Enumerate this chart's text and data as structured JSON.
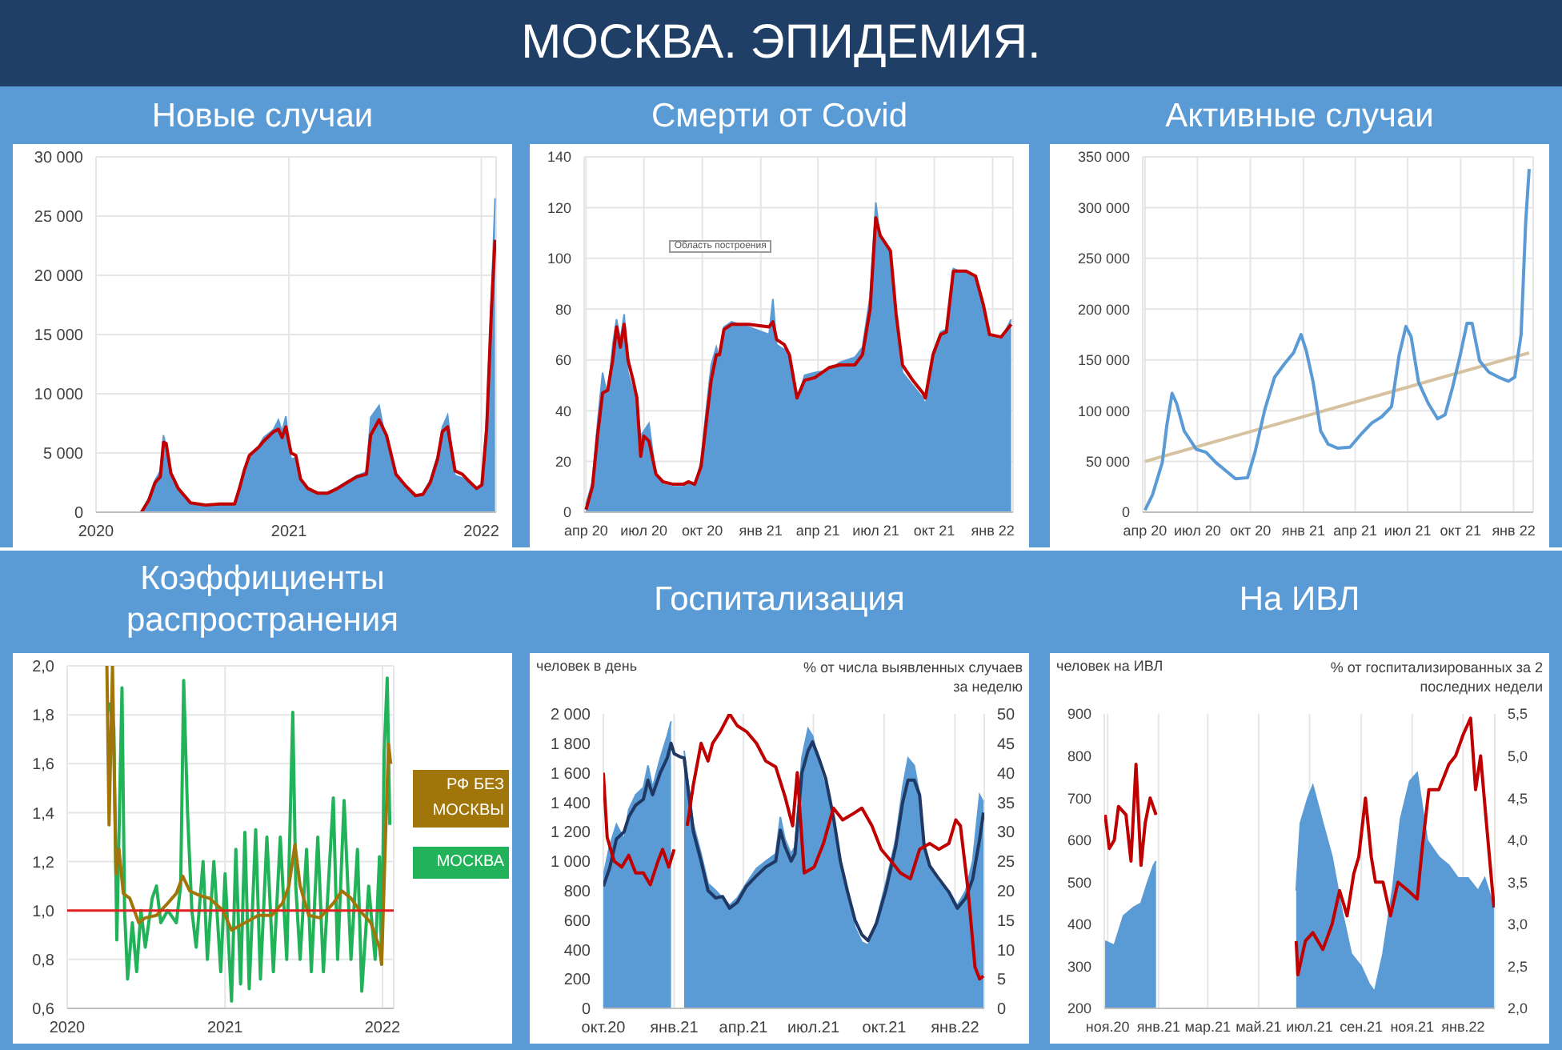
{
  "chart_data": [
    {
      "type": "line",
      "title": "Новые случаи",
      "annotations": [
        "МОСКВА. ЭПИДЕМИЯ."
      ],
      "xlim": [
        "2020-01-01",
        "2022-01-29"
      ],
      "xticks": [
        "2020",
        "2021",
        "2022"
      ],
      "ylim": [
        0,
        30000
      ],
      "yticks": [
        0,
        {
          "value": 5000,
          "label": "5 000"
        },
        {
          "value": 10000,
          "label": "10 000"
        },
        {
          "value": 15000,
          "label": "15 000"
        },
        {
          "value": 20000,
          "label": "20 000"
        },
        {
          "value": 25000,
          "label": "25 000"
        },
        {
          "value": 30000,
          "label": "30 000"
        }
      ],
      "grid": true,
      "series": [
        {
          "type": "area",
          "color": "#5b9bd5",
          "x": [
            "2020-03-27",
            "2020-04-10",
            "2020-04-22",
            "2020-05-02",
            "2020-05-08",
            "2020-05-13",
            "2020-05-22",
            "2020-06-05",
            "2020-06-28",
            "2020-07-26",
            "2020-08-23",
            "2020-09-20",
            "2020-09-29",
            "2020-10-08",
            "2020-10-18",
            "2020-11-05",
            "2020-11-14",
            "2020-12-03",
            "2020-12-12",
            "2020-12-19",
            "2020-12-26",
            "2021-01-05",
            "2021-01-14",
            "2021-01-23",
            "2021-02-06",
            "2021-02-25",
            "2021-03-15",
            "2021-04-03",
            "2021-04-21",
            "2021-05-10",
            "2021-05-28",
            "2021-06-05",
            "2021-06-21",
            "2021-07-05",
            "2021-07-23",
            "2021-08-11",
            "2021-08-29",
            "2021-09-12",
            "2021-09-26",
            "2021-10-10",
            "2021-10-19",
            "2021-10-29",
            "2021-11-12",
            "2021-11-26",
            "2021-12-09",
            "2021-12-23",
            "2022-01-02",
            "2022-01-11",
            "2022-01-20",
            "2022-01-27"
          ],
          "values": [
            0,
            1200,
            2700,
            3500,
            6500,
            5500,
            3000,
            1800,
            700,
            600,
            700,
            700,
            2200,
            3600,
            4800,
            5600,
            6300,
            7000,
            7800,
            6800,
            8100,
            4500,
            4600,
            2600,
            1900,
            1500,
            1600,
            2100,
            2600,
            3100,
            3400,
            8000,
            9000,
            5800,
            2900,
            2000,
            1300,
            1600,
            2700,
            4800,
            7200,
            8200,
            3100,
            2900,
            2400,
            1800,
            2400,
            8000,
            18000,
            26500
          ]
        },
        {
          "type": "line",
          "color": "#c00000",
          "x": [
            "2020-03-27",
            "2020-04-10",
            "2020-04-22",
            "2020-05-02",
            "2020-05-08",
            "2020-05-13",
            "2020-05-22",
            "2020-06-05",
            "2020-06-28",
            "2020-07-26",
            "2020-08-23",
            "2020-09-20",
            "2020-09-29",
            "2020-10-08",
            "2020-10-18",
            "2020-11-05",
            "2020-11-14",
            "2020-12-03",
            "2020-12-12",
            "2020-12-19",
            "2020-12-26",
            "2021-01-05",
            "2021-01-14",
            "2021-01-23",
            "2021-02-06",
            "2021-02-25",
            "2021-03-15",
            "2021-04-03",
            "2021-04-21",
            "2021-05-10",
            "2021-05-28",
            "2021-06-05",
            "2021-06-21",
            "2021-07-05",
            "2021-07-23",
            "2021-08-11",
            "2021-08-29",
            "2021-09-12",
            "2021-09-26",
            "2021-10-10",
            "2021-10-19",
            "2021-10-29",
            "2021-11-12",
            "2021-11-26",
            "2021-12-09",
            "2021-12-23",
            "2022-01-02",
            "2022-01-11",
            "2022-01-20",
            "2022-01-27"
          ],
          "values": [
            0,
            1000,
            2500,
            3000,
            5900,
            5800,
            3300,
            2000,
            800,
            600,
            700,
            700,
            2000,
            3500,
            4800,
            5500,
            6000,
            6800,
            7000,
            6300,
            7200,
            5000,
            4800,
            2800,
            2000,
            1600,
            1600,
            2000,
            2500,
            3000,
            3200,
            6500,
            7800,
            6500,
            3200,
            2200,
            1400,
            1500,
            2500,
            4500,
            6800,
            7200,
            3500,
            3200,
            2600,
            2000,
            2300,
            7000,
            17000,
            23000
          ]
        }
      ]
    },
    {
      "type": "line",
      "title": "Смерти от Covid",
      "annotations": [
        "Область построения"
      ],
      "xlim": [
        "2020-03-29",
        "2022-02-02"
      ],
      "xticks": [
        {
          "value": "2020-04-01",
          "label": "апр 20"
        },
        {
          "value": "2020-07-01",
          "label": "июл 20"
        },
        {
          "value": "2020-10-01",
          "label": "окт 20"
        },
        {
          "value": "2021-01-01",
          "label": "янв 21"
        },
        {
          "value": "2021-04-01",
          "label": "апр 21"
        },
        {
          "value": "2021-07-01",
          "label": "июл 21"
        },
        {
          "value": "2021-10-01",
          "label": "окт 21"
        },
        {
          "value": "2022-01-01",
          "label": "янв 22"
        }
      ],
      "ylim": [
        0,
        140
      ],
      "yticks": [
        0,
        20,
        40,
        60,
        80,
        100,
        120,
        140
      ],
      "grid": true,
      "series": [
        {
          "type": "area",
          "color": "#5b9bd5",
          "x": [
            "2020-04-01",
            "2020-04-11",
            "2020-04-19",
            "2020-04-27",
            "2020-05-05",
            "2020-05-13",
            "2020-05-19",
            "2020-05-25",
            "2020-05-31",
            "2020-06-06",
            "2020-06-14",
            "2020-06-20",
            "2020-06-26",
            "2020-07-01",
            "2020-07-09",
            "2020-07-20",
            "2020-07-31",
            "2020-08-16",
            "2020-09-01",
            "2020-09-09",
            "2020-09-19",
            "2020-09-29",
            "2020-10-07",
            "2020-10-15",
            "2020-10-23",
            "2020-10-28",
            "2020-11-04",
            "2020-11-16",
            "2020-12-13",
            "2021-01-14",
            "2021-01-20",
            "2021-01-26",
            "2021-02-07",
            "2021-02-15",
            "2021-02-27",
            "2021-03-11",
            "2021-03-27",
            "2021-04-19",
            "2021-05-05",
            "2021-05-29",
            "2021-06-10",
            "2021-06-22",
            "2021-07-01",
            "2021-07-08",
            "2021-07-24",
            "2021-08-02",
            "2021-08-12",
            "2021-08-28",
            "2021-09-13",
            "2021-09-17",
            "2021-09-29",
            "2021-10-11",
            "2021-10-20",
            "2021-10-31",
            "2021-11-20",
            "2021-12-05",
            "2021-12-17",
            "2021-12-27",
            "2022-01-14",
            "2022-01-30"
          ],
          "values": [
            3,
            12,
            35,
            55,
            45,
            66,
            76,
            68,
            78,
            55,
            48,
            40,
            30,
            32,
            35,
            14,
            11,
            10,
            10,
            12,
            10,
            20,
            40,
            58,
            65,
            60,
            73,
            75,
            73,
            70,
            84,
            66,
            64,
            60,
            44,
            54,
            55,
            56,
            59,
            61,
            65,
            85,
            122,
            108,
            102,
            75,
            55,
            50,
            45,
            42,
            63,
            71,
            72,
            96,
            94,
            92,
            80,
            69,
            68,
            76
          ]
        },
        {
          "type": "line",
          "color": "#c00000",
          "x": [
            "2020-04-01",
            "2020-04-11",
            "2020-04-19",
            "2020-04-27",
            "2020-05-05",
            "2020-05-13",
            "2020-05-19",
            "2020-05-25",
            "2020-05-31",
            "2020-06-06",
            "2020-06-14",
            "2020-06-20",
            "2020-06-26",
            "2020-07-01",
            "2020-07-09",
            "2020-07-20",
            "2020-07-31",
            "2020-08-16",
            "2020-09-01",
            "2020-09-09",
            "2020-09-19",
            "2020-09-29",
            "2020-10-07",
            "2020-10-15",
            "2020-10-23",
            "2020-10-28",
            "2020-11-04",
            "2020-11-16",
            "2020-12-13",
            "2021-01-14",
            "2021-01-20",
            "2021-01-26",
            "2021-02-07",
            "2021-02-15",
            "2021-02-27",
            "2021-03-11",
            "2021-03-27",
            "2021-04-19",
            "2021-05-05",
            "2021-05-29",
            "2021-06-10",
            "2021-06-22",
            "2021-07-01",
            "2021-07-08",
            "2021-07-24",
            "2021-08-02",
            "2021-08-12",
            "2021-08-28",
            "2021-09-13",
            "2021-09-17",
            "2021-09-29",
            "2021-10-11",
            "2021-10-20",
            "2021-10-31",
            "2021-11-20",
            "2021-12-05",
            "2021-12-17",
            "2021-12-27",
            "2022-01-14",
            "2022-01-30"
          ],
          "values": [
            1,
            10,
            30,
            47,
            48,
            60,
            73,
            65,
            74,
            60,
            52,
            45,
            22,
            30,
            28,
            15,
            12,
            11,
            11,
            12,
            11,
            18,
            35,
            52,
            62,
            62,
            72,
            74,
            74,
            73,
            75,
            68,
            66,
            62,
            45,
            52,
            53,
            57,
            58,
            58,
            62,
            80,
            116,
            109,
            103,
            78,
            58,
            52,
            47,
            45,
            62,
            70,
            71,
            95,
            95,
            93,
            82,
            70,
            69,
            74
          ]
        }
      ]
    },
    {
      "type": "line",
      "title": "Активные случаи",
      "xlim": [
        "2020-03-28",
        "2022-02-04"
      ],
      "xticks": [
        {
          "value": "2020-04-01",
          "label": "апр 20"
        },
        {
          "value": "2020-07-01",
          "label": "июл 20"
        },
        {
          "value": "2020-10-01",
          "label": "окт 20"
        },
        {
          "value": "2021-01-01",
          "label": "янв 21"
        },
        {
          "value": "2021-04-01",
          "label": "апр 21"
        },
        {
          "value": "2021-07-01",
          "label": "июл 21"
        },
        {
          "value": "2021-10-01",
          "label": "окт 21"
        },
        {
          "value": "2022-01-01",
          "label": "янв 22"
        }
      ],
      "ylim": [
        0,
        350000
      ],
      "yticks": [
        0,
        {
          "value": 50000,
          "label": "50 000"
        },
        {
          "value": 100000,
          "label": "100 000"
        },
        {
          "value": 150000,
          "label": "150 000"
        },
        {
          "value": 200000,
          "label": "200 000"
        },
        {
          "value": 250000,
          "label": "250 000"
        },
        {
          "value": 300000,
          "label": "300 000"
        },
        {
          "value": 350000,
          "label": "350 000"
        }
      ],
      "grid": true,
      "series": [
        {
          "type": "line",
          "color": "#d6c2a0",
          "x": [
            "2020-04-01",
            "2022-01-28"
          ],
          "values": [
            50000,
            157000
          ]
        },
        {
          "type": "line",
          "color": "#5b9bd5",
          "x": [
            "2020-04-01",
            "2020-04-14",
            "2020-05-01",
            "2020-05-09",
            "2020-05-18",
            "2020-05-26",
            "2020-06-08",
            "2020-06-29",
            "2020-07-16",
            "2020-08-02",
            "2020-08-19",
            "2020-09-05",
            "2020-09-26",
            "2020-10-09",
            "2020-10-26",
            "2020-11-12",
            "2020-11-29",
            "2020-12-15",
            "2020-12-28",
            "2021-01-06",
            "2021-01-18",
            "2021-01-31",
            "2021-02-13",
            "2021-03-02",
            "2021-03-23",
            "2021-04-13",
            "2021-04-30",
            "2021-05-17",
            "2021-06-03",
            "2021-06-16",
            "2021-06-28",
            "2021-07-07",
            "2021-07-20",
            "2021-08-06",
            "2021-08-22",
            "2021-09-04",
            "2021-09-17",
            "2021-09-30",
            "2021-10-12",
            "2021-10-21",
            "2021-11-03",
            "2021-11-19",
            "2021-12-06",
            "2021-12-23",
            "2022-01-03",
            "2022-01-14",
            "2022-01-22",
            "2022-01-28"
          ],
          "values": [
            2000,
            17000,
            49000,
            86000,
            117000,
            107000,
            80000,
            62000,
            59000,
            49000,
            41000,
            33000,
            34000,
            59000,
            101000,
            133000,
            146000,
            157000,
            175000,
            159000,
            128000,
            80000,
            67000,
            63000,
            64000,
            78000,
            88000,
            94000,
            104000,
            154000,
            183000,
            173000,
            128000,
            107000,
            92000,
            96000,
            123000,
            154000,
            186000,
            186000,
            149000,
            138000,
            133000,
            129000,
            133000,
            175000,
            286000,
            338000
          ]
        }
      ]
    },
    {
      "type": "line",
      "title": "Коэффициенты распространения",
      "xlim": [
        "2020-01-01",
        "2022-01-27"
      ],
      "xticks": [
        "2020",
        "2021",
        "2022"
      ],
      "ylim": [
        0.6,
        2.0
      ],
      "yticks": [
        {
          "value": 0.6,
          "label": "0,6"
        },
        {
          "value": 0.8,
          "label": "0,8"
        },
        {
          "value": 1.0,
          "label": "1,0"
        },
        {
          "value": 1.2,
          "label": "1,2"
        },
        {
          "value": 1.4,
          "label": "1,4"
        },
        {
          "value": 1.6,
          "label": "1,6"
        },
        {
          "value": 1.8,
          "label": "1,8"
        },
        {
          "value": 2.0,
          "label": "2,0"
        }
      ],
      "grid": true,
      "legend": "right",
      "ref_lines": [
        {
          "axis": "y",
          "value": 1.0,
          "color": "#e02020"
        }
      ],
      "series": [
        {
          "type": "line",
          "name": "МОСКВА",
          "color": "#22b35a",
          "x": [
            "2020-04-07",
            "2020-04-18",
            "2020-04-25",
            "2020-05-07",
            "2020-05-13",
            "2020-05-20",
            "2020-05-31",
            "2020-06-10",
            "2020-06-20",
            "2020-06-30",
            "2020-07-16",
            "2020-07-26",
            "2020-08-05",
            "2020-08-21",
            "2020-09-10",
            "2020-09-20",
            "2020-09-27",
            "2020-10-06",
            "2020-10-16",
            "2020-10-26",
            "2020-11-11",
            "2020-11-21",
            "2020-12-06",
            "2020-12-22",
            "2021-01-01",
            "2021-01-16",
            "2021-01-26",
            "2021-02-06",
            "2021-02-16",
            "2021-02-26",
            "2021-03-13",
            "2021-03-24",
            "2021-04-08",
            "2021-04-23",
            "2021-05-09",
            "2021-05-24",
            "2021-06-07",
            "2021-06-14",
            "2021-06-24",
            "2021-07-09",
            "2021-07-20",
            "2021-08-04",
            "2021-08-17",
            "2021-09-09",
            "2021-09-19",
            "2021-10-04",
            "2021-10-20",
            "2021-11-04",
            "2021-11-14",
            "2021-11-30",
            "2021-12-15",
            "2021-12-25",
            "2021-12-30",
            "2022-01-05",
            "2022-01-12",
            "2022-01-18"
          ],
          "values": [
            1.85,
            1.75,
            0.88,
            1.91,
            1.0,
            0.72,
            0.95,
            0.75,
            1.0,
            0.85,
            1.05,
            1.1,
            0.95,
            1.0,
            0.95,
            1.1,
            1.94,
            1.4,
            1.0,
            0.85,
            1.2,
            0.8,
            1.2,
            0.75,
            1.15,
            0.63,
            1.25,
            0.7,
            1.32,
            0.68,
            1.33,
            0.72,
            1.3,
            0.75,
            1.3,
            0.8,
            1.81,
            1.1,
            0.8,
            1.25,
            0.75,
            1.3,
            0.75,
            1.46,
            0.8,
            1.45,
            0.8,
            1.25,
            0.67,
            1.1,
            0.8,
            1.22,
            0.78,
            1.65,
            1.95,
            1.35
          ]
        },
        {
          "type": "line",
          "name": "РФ БЕЗ МОСКВЫ",
          "color": "#a0760a",
          "x": [
            "2020-04-02",
            "2020-04-07",
            "2020-04-15",
            "2020-04-23",
            "2020-04-30",
            "2020-05-10",
            "2020-05-25",
            "2020-06-15",
            "2020-06-30",
            "2020-07-26",
            "2020-08-21",
            "2020-09-10",
            "2020-09-25",
            "2020-10-11",
            "2020-11-05",
            "2020-11-26",
            "2020-12-27",
            "2021-01-16",
            "2021-02-16",
            "2021-03-19",
            "2021-04-19",
            "2021-05-14",
            "2021-05-29",
            "2021-06-12",
            "2021-06-24",
            "2021-07-14",
            "2021-08-09",
            "2021-09-09",
            "2021-09-29",
            "2021-10-20",
            "2021-11-09",
            "2021-12-05",
            "2021-12-25",
            "2021-12-30",
            "2022-01-08",
            "2022-01-15",
            "2022-01-20"
          ],
          "values": [
            2.0,
            1.35,
            2.0,
            1.15,
            1.25,
            1.07,
            1.05,
            0.95,
            0.97,
            0.98,
            1.03,
            1.07,
            1.14,
            1.08,
            1.06,
            1.05,
            1.0,
            0.92,
            0.95,
            0.98,
            0.98,
            1.03,
            1.1,
            1.27,
            1.1,
            0.98,
            0.97,
            1.03,
            1.08,
            1.05,
            1.0,
            0.95,
            0.85,
            0.78,
            1.3,
            1.68,
            1.6
          ]
        }
      ]
    },
    {
      "type": "line",
      "title": "Госпитализация",
      "ylabel": "человек в день",
      "y2label": "% от числа выявленных случаев за неделю",
      "xlim": [
        "2020-10-01",
        "2022-02-08"
      ],
      "xticks": [
        {
          "value": "2020-10-01",
          "label": "окт.20"
        },
        {
          "value": "2021-01-01",
          "label": "янв.21"
        },
        {
          "value": "2021-04-01",
          "label": "апр.21"
        },
        {
          "value": "2021-07-01",
          "label": "июл.21"
        },
        {
          "value": "2021-10-01",
          "label": "окт.21"
        },
        {
          "value": "2022-01-01",
          "label": "янв.22"
        }
      ],
      "ylim": [
        0,
        2000
      ],
      "yticks": [
        0,
        200,
        400,
        600,
        800,
        {
          "value": 1000,
          "label": "1 000"
        },
        {
          "value": 1200,
          "label": "1 200"
        },
        {
          "value": 1400,
          "label": "1 400"
        },
        {
          "value": 1600,
          "label": "1 600"
        },
        {
          "value": 1800,
          "label": "1 800"
        },
        {
          "value": 2000,
          "label": "2 000"
        }
      ],
      "y2lim": [
        0,
        50
      ],
      "y2ticks": [
        0,
        5,
        10,
        15,
        20,
        25,
        30,
        35,
        40,
        45,
        50
      ],
      "grid": "x",
      "series": [
        {
          "type": "area",
          "color": "#5b9bd5",
          "x": [
            "2020-10-01",
            "2020-10-09",
            "2020-10-18",
            "2020-10-28",
            "2020-11-03",
            "2020-11-12",
            "2020-11-22",
            "2020-11-28",
            "2020-12-04",
            "2020-12-14",
            "2020-12-23",
            "2020-12-28",
            "2021-01-01",
            "2021-01-08",
            "2021-01-14",
            "2021-01-20",
            "2021-01-26",
            "2021-02-05",
            "2021-02-14",
            "2021-02-24",
            "2021-03-05",
            "2021-03-14",
            "2021-03-24",
            "2021-04-05",
            "2021-04-18",
            "2021-04-30",
            "2021-05-13",
            "2021-05-19",
            "2021-05-25",
            "2021-06-02",
            "2021-06-07",
            "2021-06-16",
            "2021-06-24",
            "2021-06-30",
            "2021-07-08",
            "2021-07-17",
            "2021-07-27",
            "2021-08-05",
            "2021-08-14",
            "2021-08-24",
            "2021-09-02",
            "2021-09-10",
            "2021-09-21",
            "2021-10-03",
            "2021-10-16",
            "2021-10-25",
            "2021-11-01",
            "2021-11-09",
            "2021-11-16",
            "2021-11-22",
            "2021-11-29",
            "2021-12-11",
            "2021-12-24",
            "2022-01-04",
            "2022-01-15",
            "2022-01-24",
            "2022-02-02",
            "2022-02-07"
          ],
          "values": [
            900,
            1100,
            1250,
            1150,
            1350,
            1450,
            1500,
            1650,
            1500,
            1700,
            1850,
            1950,
            null,
            null,
            1750,
            1500,
            1250,
            1050,
            850,
            800,
            750,
            700,
            750,
            850,
            950,
            1000,
            1050,
            1300,
            1150,
            1050,
            1100,
            1700,
            1900,
            1850,
            1650,
            1500,
            1250,
            950,
            750,
            550,
            450,
            430,
            600,
            850,
            1150,
            1500,
            1700,
            1650,
            1450,
            1050,
            950,
            850,
            800,
            700,
            800,
            1000,
            1450,
            1400
          ]
        },
        {
          "type": "line",
          "color": "#1f3864",
          "x": [
            "2020-10-01",
            "2020-10-09",
            "2020-10-18",
            "2020-10-28",
            "2020-11-03",
            "2020-11-12",
            "2020-11-22",
            "2020-11-28",
            "2020-12-04",
            "2020-12-14",
            "2020-12-23",
            "2020-12-28",
            "2021-01-01",
            "2021-01-08",
            "2021-01-14",
            "2021-01-20",
            "2021-01-26",
            "2021-02-05",
            "2021-02-14",
            "2021-02-24",
            "2021-03-05",
            "2021-03-14",
            "2021-03-24",
            "2021-04-05",
            "2021-04-18",
            "2021-04-30",
            "2021-05-13",
            "2021-05-19",
            "2021-05-25",
            "2021-06-02",
            "2021-06-07",
            "2021-06-16",
            "2021-06-24",
            "2021-06-30",
            "2021-07-08",
            "2021-07-17",
            "2021-07-27",
            "2021-08-05",
            "2021-08-14",
            "2021-08-24",
            "2021-09-02",
            "2021-09-10",
            "2021-09-21",
            "2021-10-03",
            "2021-10-16",
            "2021-10-25",
            "2021-11-01",
            "2021-11-09",
            "2021-11-16",
            "2021-11-22",
            "2021-11-29",
            "2021-12-11",
            "2021-12-24",
            "2022-01-04",
            "2022-01-15",
            "2022-01-24",
            "2022-02-02",
            "2022-02-07"
          ],
          "values": [
            830,
            950,
            1150,
            1200,
            1300,
            1380,
            1420,
            1550,
            1450,
            1600,
            1700,
            1800,
            1730,
            1710,
            1700,
            1450,
            1200,
            1000,
            800,
            750,
            760,
            680,
            720,
            830,
            900,
            960,
            1000,
            1210,
            1100,
            1000,
            1050,
            1600,
            1750,
            1810,
            1700,
            1560,
            1300,
            1000,
            800,
            600,
            500,
            460,
            580,
            800,
            1100,
            1400,
            1550,
            1550,
            1450,
            1100,
            970,
            880,
            790,
            680,
            750,
            880,
            1150,
            1330
          ]
        },
        {
          "type": "line",
          "axis": "y2",
          "color": "#c00000",
          "x": [
            "2020-10-01",
            "2020-10-06",
            "2020-10-15",
            "2020-10-25",
            "2020-11-03",
            "2020-11-12",
            "2020-11-22",
            "2020-12-01",
            "2020-12-11",
            "2020-12-17",
            "2020-12-25",
            "2021-01-01",
            "2021-01-08",
            "2021-01-18",
            "2021-01-26",
            "2021-02-05",
            "2021-02-14",
            "2021-02-20",
            "2021-03-02",
            "2021-03-14",
            "2021-03-24",
            "2021-04-05",
            "2021-04-18",
            "2021-04-30",
            "2021-05-13",
            "2021-05-25",
            "2021-06-04",
            "2021-06-10",
            "2021-06-19",
            "2021-07-02",
            "2021-07-14",
            "2021-07-27",
            "2021-08-08",
            "2021-08-21",
            "2021-09-02",
            "2021-09-15",
            "2021-09-27",
            "2021-10-10",
            "2021-10-22",
            "2021-11-04",
            "2021-11-16",
            "2021-11-29",
            "2021-12-11",
            "2021-12-24",
            "2022-01-02",
            "2022-01-08",
            "2022-01-18",
            "2022-01-27",
            "2022-02-02",
            "2022-02-07"
          ],
          "values": [
            40,
            29,
            25,
            24,
            26,
            23,
            23,
            21,
            25,
            27,
            24,
            27,
            null,
            31,
            38,
            45,
            42,
            45,
            47,
            50,
            48,
            47,
            45,
            42,
            41,
            36,
            31,
            40,
            23,
            24,
            28,
            34,
            32,
            33,
            34,
            31,
            27,
            25,
            23,
            22,
            27,
            28,
            27,
            28,
            32,
            31,
            20,
            7,
            5,
            5.5
          ]
        }
      ]
    },
    {
      "type": "line",
      "title": "На ИВЛ",
      "ylabel": "человек на ИВЛ",
      "y2label": "% от госпитализированных за 2 последних недели",
      "xlim": [
        "2020-10-28",
        "2022-02-08"
      ],
      "xticks": [
        {
          "value": "2020-11-01",
          "label": "ноя.20"
        },
        {
          "value": "2021-01-01",
          "label": "янв.21"
        },
        {
          "value": "2021-03-01",
          "label": "мар.21"
        },
        {
          "value": "2021-05-01",
          "label": "май.21"
        },
        {
          "value": "2021-07-01",
          "label": "июл.21"
        },
        {
          "value": "2021-09-01",
          "label": "сен.21"
        },
        {
          "value": "2021-11-01",
          "label": "ноя.21"
        },
        {
          "value": "2022-01-01",
          "label": "янв.22"
        }
      ],
      "ylim": [
        200,
        900
      ],
      "yticks": [
        200,
        300,
        400,
        500,
        600,
        700,
        800,
        900
      ],
      "y2lim": [
        2.0,
        5.5
      ],
      "y2ticks": [
        {
          "value": 2.0,
          "label": "2,0"
        },
        {
          "value": 2.5,
          "label": "2,5"
        },
        {
          "value": 3.0,
          "label": "3,0"
        },
        {
          "value": 3.5,
          "label": "3,5"
        },
        {
          "value": 4.0,
          "label": "4,0"
        },
        {
          "value": 4.5,
          "label": "4,5"
        },
        {
          "value": 5.0,
          "label": "5,0"
        },
        {
          "value": 5.5,
          "label": "5,5"
        }
      ],
      "grid": "x",
      "series": [
        {
          "type": "area",
          "color": "#5b9bd5",
          "x": [
            "2020-10-29",
            "2020-11-09",
            "2020-11-20",
            "2020-12-02",
            "2020-12-11",
            "2020-12-19",
            "2020-12-26",
            "2020-12-29",
            "2021-01-15",
            "2021-06-15",
            "2021-06-20",
            "2021-06-29",
            "2021-07-05",
            "2021-07-17",
            "2021-07-28",
            "2021-08-09",
            "2021-08-20",
            "2021-09-01",
            "2021-09-10",
            "2021-09-17",
            "2021-09-27",
            "2021-10-09",
            "2021-10-18",
            "2021-10-29",
            "2021-11-07",
            "2021-11-19",
            "2021-12-03",
            "2021-12-15",
            "2021-12-26",
            "2022-01-07",
            "2022-01-19",
            "2022-01-27",
            "2022-02-07"
          ],
          "values": [
            360,
            350,
            420,
            440,
            450,
            500,
            540,
            550,
            null,
            480,
            640,
            700,
            730,
            640,
            560,
            430,
            330,
            300,
            260,
            240,
            330,
            490,
            650,
            740,
            760,
            600,
            560,
            540,
            510,
            510,
            480,
            510,
            440
          ]
        },
        {
          "type": "line",
          "axis": "y2",
          "color": "#c00000",
          "x": [
            "2020-10-29",
            "2020-11-03",
            "2020-11-09",
            "2020-11-14",
            "2020-11-23",
            "2020-11-29",
            "2020-12-05",
            "2020-12-11",
            "2020-12-16",
            "2020-12-22",
            "2020-12-29",
            "2021-01-15",
            "2021-06-15",
            "2021-06-17",
            "2021-06-26",
            "2021-07-05",
            "2021-07-17",
            "2021-07-28",
            "2021-08-06",
            "2021-08-15",
            "2021-08-23",
            "2021-08-29",
            "2021-09-06",
            "2021-09-13",
            "2021-09-18",
            "2021-09-27",
            "2021-10-06",
            "2021-10-15",
            "2021-10-27",
            "2021-11-07",
            "2021-11-13",
            "2021-11-21",
            "2021-12-03",
            "2021-12-15",
            "2021-12-23",
            "2022-01-01",
            "2022-01-10",
            "2022-01-16",
            "2022-01-22",
            "2022-01-29",
            "2022-02-07"
          ],
          "values": [
            4.3,
            3.9,
            4.0,
            4.4,
            4.3,
            3.75,
            4.9,
            3.7,
            4.2,
            4.5,
            4.3,
            null,
            2.8,
            2.4,
            2.8,
            2.9,
            2.7,
            3.0,
            3.4,
            3.1,
            3.6,
            3.8,
            4.5,
            3.8,
            3.5,
            3.5,
            3.1,
            3.5,
            3.4,
            3.3,
            3.9,
            4.6,
            4.6,
            4.9,
            5.0,
            5.25,
            5.45,
            4.6,
            5.0,
            4.2,
            3.2
          ]
        }
      ]
    }
  ]
}
